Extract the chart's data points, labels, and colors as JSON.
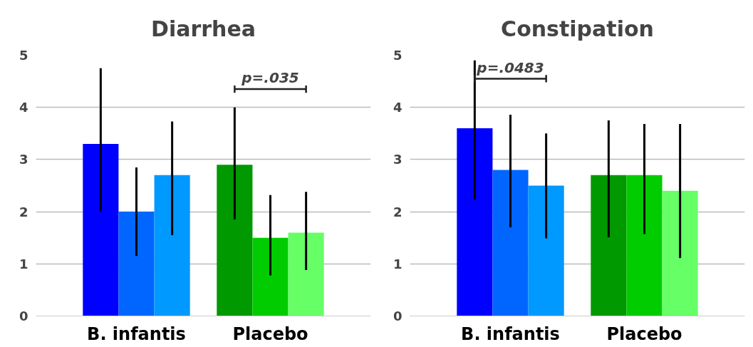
{
  "chart_data": [
    {
      "type": "bar",
      "title": "Diarrhea",
      "categories": [
        "B. infantis",
        "Placebo"
      ],
      "ylim": [
        0,
        5
      ],
      "yticks": [
        0,
        1,
        2,
        3,
        4,
        5
      ],
      "grid": "y",
      "series": [
        {
          "colors": [
            "#0000ff",
            "#009900"
          ],
          "values": [
            3.3,
            2.9
          ],
          "errors": [
            [
              2.0,
              4.75
            ],
            [
              1.85,
              4.0
            ]
          ]
        },
        {
          "colors": [
            "#0066ff",
            "#00cc00"
          ],
          "values": [
            2.0,
            1.5
          ],
          "errors": [
            [
              1.15,
              2.85
            ],
            [
              0.78,
              2.32
            ]
          ]
        },
        {
          "colors": [
            "#0099ff",
            "#66ff66"
          ],
          "values": [
            2.7,
            1.6
          ],
          "errors": [
            [
              1.55,
              3.73
            ],
            [
              0.88,
              2.38
            ]
          ]
        }
      ],
      "annotations": [
        "p=.035"
      ]
    },
    {
      "type": "bar",
      "title": "Constipation",
      "categories": [
        "B. infantis",
        "Placebo"
      ],
      "ylim": [
        0,
        5
      ],
      "yticks": [
        0,
        1,
        2,
        3,
        4,
        5
      ],
      "grid": "y",
      "series": [
        {
          "colors": [
            "#0000ff",
            "#009900"
          ],
          "values": [
            3.6,
            2.7
          ],
          "errors": [
            [
              2.23,
              4.9
            ],
            [
              1.51,
              3.75
            ]
          ]
        },
        {
          "colors": [
            "#0066ff",
            "#00cc00"
          ],
          "values": [
            2.8,
            2.7
          ],
          "errors": [
            [
              1.7,
              3.86
            ],
            [
              1.57,
              3.68
            ]
          ]
        },
        {
          "colors": [
            "#0099ff",
            "#66ff66"
          ],
          "values": [
            2.5,
            2.4
          ],
          "errors": [
            [
              1.49,
              3.5
            ],
            [
              1.11,
              3.68
            ]
          ]
        }
      ],
      "annotations": [
        "p=.0483"
      ]
    }
  ]
}
